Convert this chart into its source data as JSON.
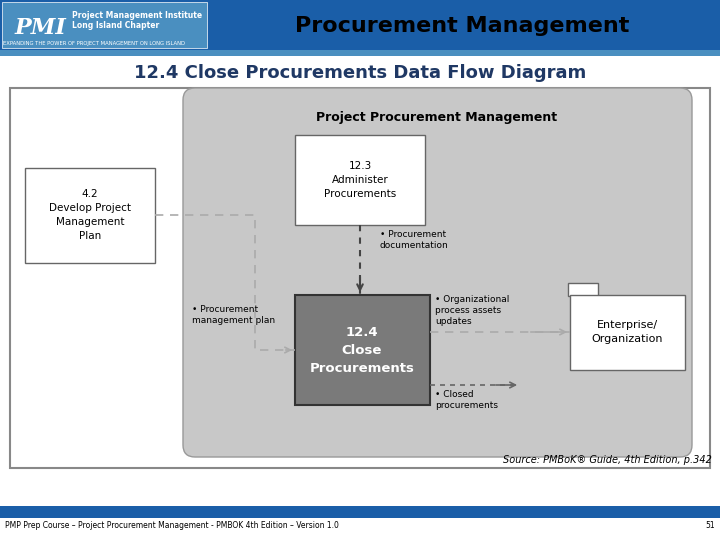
{
  "title": "Procurement Management",
  "subtitle": "12.4 Close Procurements Data Flow Diagram",
  "source": "Source: PMBoK® Guide, 4th Edition, p.342",
  "footer": "PMP Prep Course – Project Procurement Management - PMBOK 4th Edition – Version 1.0",
  "page_num": "51",
  "header_bg": "#1A5EA8",
  "pmi_logo_bg": "#4A8FC0",
  "title_color": "#000000",
  "subtitle_color": "#1F3864",
  "ppm_box_bg": "#C8C8C8",
  "ppm_box_label": "Project Procurement Management",
  "node_42_label": "4.2\nDevelop Project\nManagement\nPlan",
  "node_123_label": "12.3\nAdminister\nProcurements",
  "node_124_label": "12.4\nClose\nProcurements",
  "node_eo_label": "Enterprise/\nOrganization",
  "arrow_proc_mgmt_plan": "• Procurement\nmanagement plan",
  "arrow_proc_doc": "• Procurement\ndocumentation",
  "arrow_org_assets": "• Organizational\nprocess assets\nupdates",
  "arrow_closed": "• Closed\nprocurements",
  "footer_blue_color": "#1A5EA8",
  "strip_color": "#4A8FC0",
  "box124_bg": "#7A7A7A",
  "white": "#ffffff",
  "light_grey_border": "#888888",
  "dark_border": "#444444"
}
